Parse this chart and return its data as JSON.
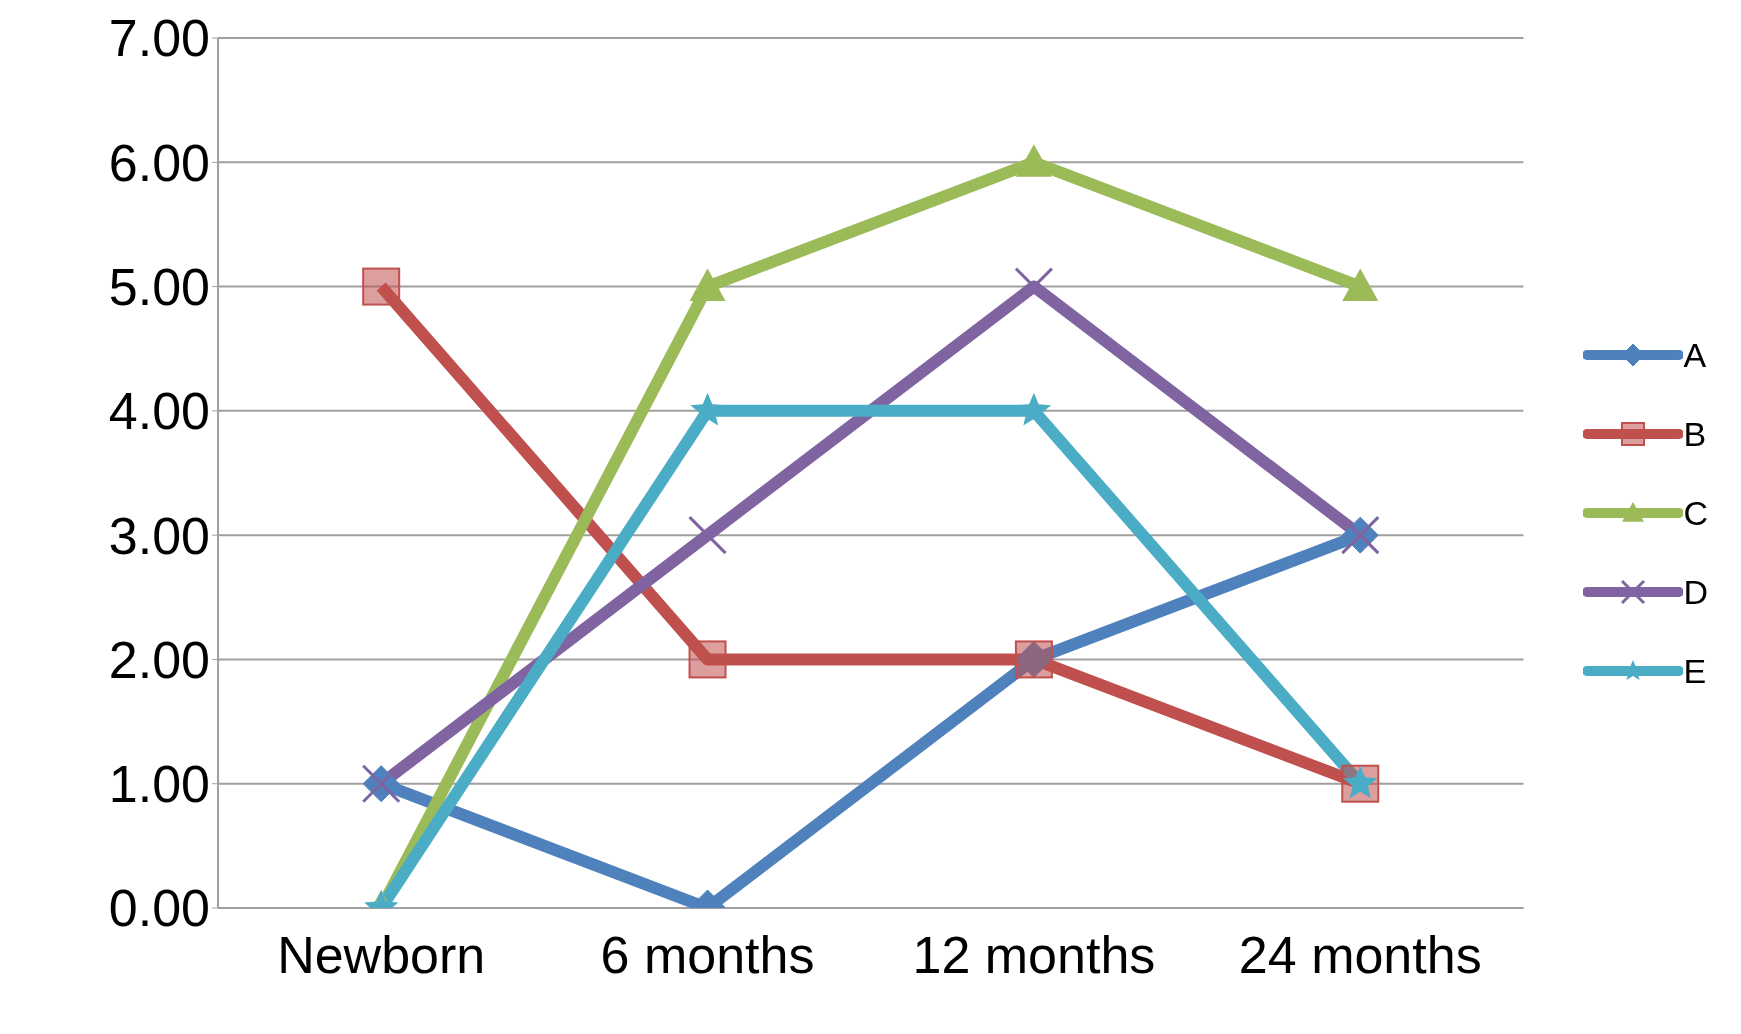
{
  "chart_data": {
    "type": "line",
    "categories": [
      "Newborn",
      "6 months",
      "12 months",
      "24 months"
    ],
    "series": [
      {
        "name": "A",
        "color": "#4f81bd",
        "marker": "diamond",
        "values": [
          1,
          0,
          2,
          3
        ]
      },
      {
        "name": "B",
        "color": "#c0504d",
        "marker": "square",
        "values": [
          5,
          2,
          2,
          1
        ]
      },
      {
        "name": "C",
        "color": "#9bbb59",
        "marker": "triangle",
        "values": [
          0,
          5,
          6,
          5
        ]
      },
      {
        "name": "D",
        "color": "#8064a2",
        "marker": "cross",
        "values": [
          1,
          3,
          5,
          3
        ]
      },
      {
        "name": "E",
        "color": "#4bacc6",
        "marker": "star",
        "values": [
          0,
          4,
          4,
          1
        ]
      }
    ],
    "ylim": [
      0,
      7
    ],
    "yticks": [
      {
        "value": 0,
        "label": "0.00"
      },
      {
        "value": 1,
        "label": "1.00"
      },
      {
        "value": 2,
        "label": "2.00"
      },
      {
        "value": 3,
        "label": "3.00"
      },
      {
        "value": 4,
        "label": "4.00"
      },
      {
        "value": 5,
        "label": "5.00"
      },
      {
        "value": 6,
        "label": "6.00"
      },
      {
        "value": 7,
        "label": "7.00"
      }
    ],
    "grid": "y",
    "legend": "right",
    "line_style": "solid"
  }
}
